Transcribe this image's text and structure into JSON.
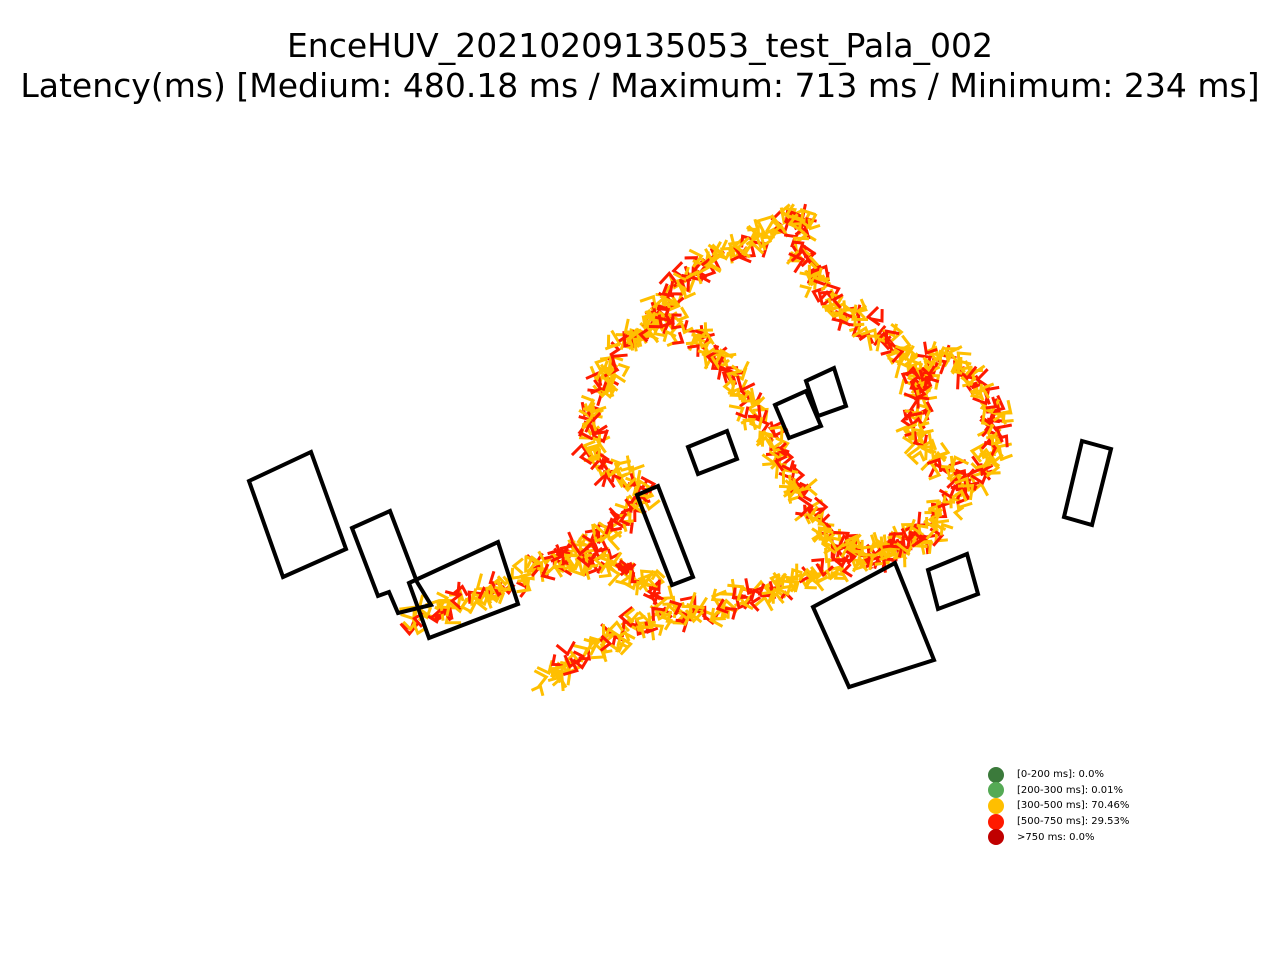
{
  "chart_data": {
    "type": "scatter",
    "title": "EnceHUV_20210209135053_test_Pala_002",
    "subtitle": "Latency(ms) [Medium: 480.18 ms / Maximum: 713 ms / Minimum: 234 ms]",
    "axes_visible": false,
    "grid": false,
    "legend_placement": "lower-right",
    "legend": [
      {
        "label": "[0-200 ms]: 0.0%",
        "color": "#3b7a3b"
      },
      {
        "label": "[200-300 ms]: 0.01%",
        "color": "#55aa55"
      },
      {
        "label": "[300-500 ms]: 70.46%",
        "color": "#ffbf00"
      },
      {
        "label": "[500-750 ms]: 29.53%",
        "color": "#ff1a00"
      },
      {
        "label": ">750 ms: 0.0%",
        "color": "#c00000"
      }
    ],
    "marker_colors": {
      "mid": "#ffbf00",
      "high": "#ff1a00"
    },
    "outline_color": "#000000"
  }
}
